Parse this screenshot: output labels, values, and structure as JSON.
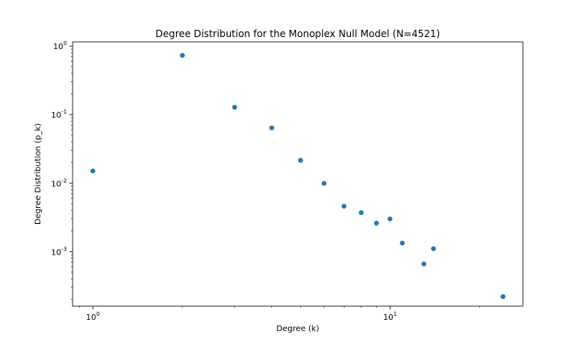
{
  "chart_data": {
    "type": "scatter",
    "title": "Degree Distribution for the Monoplex Null Model (N=4521)",
    "xlabel": "Degree (k)",
    "ylabel": "Degree Distribution (p_k)",
    "xscale": "log",
    "yscale": "log",
    "xlim": [
      0.855,
      28
    ],
    "ylim": [
      0.00016,
      1.15
    ],
    "grid": false,
    "legend": "none",
    "marker_color": "#1f77b4",
    "x_ticks": [
      {
        "value": 1,
        "label": "10^0"
      },
      {
        "value": 10,
        "label": "10^1"
      }
    ],
    "y_ticks": [
      {
        "value": 0.001,
        "label": "10^-3"
      },
      {
        "value": 0.01,
        "label": "10^-2"
      },
      {
        "value": 0.1,
        "label": "10^-1"
      },
      {
        "value": 1,
        "label": "10^0"
      }
    ],
    "x": [
      1,
      2,
      3,
      4,
      5,
      6,
      7,
      8,
      9,
      10,
      11,
      13,
      14,
      24
    ],
    "y": [
      0.015,
      0.73,
      0.128,
      0.064,
      0.0215,
      0.0099,
      0.0046,
      0.0037,
      0.0026,
      0.003,
      0.00133,
      0.00066,
      0.0011,
      0.00022
    ]
  }
}
